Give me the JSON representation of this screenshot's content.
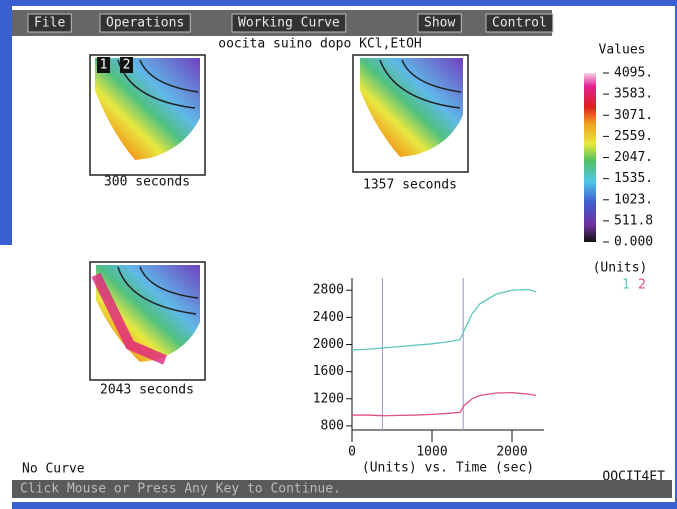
{
  "menu": [
    "File",
    "Operations",
    "Working Curve",
    "Show",
    "Control"
  ],
  "title": "oocita suino dopo KCl,EtOH",
  "images": [
    {
      "label": "300 seconds",
      "regions": [
        "1",
        "2"
      ]
    },
    {
      "label": "1357 seconds"
    },
    {
      "label": "2043 seconds"
    }
  ],
  "colorbar": {
    "title": "Values",
    "units": "(Units)",
    "ticks": [
      {
        "value": 4095,
        "label": "4095."
      },
      {
        "value": 3583,
        "label": "3583."
      },
      {
        "value": 3071,
        "label": "3071."
      },
      {
        "value": 2559,
        "label": "2559."
      },
      {
        "value": 2047,
        "label": "2047."
      },
      {
        "value": 1535,
        "label": "1535."
      },
      {
        "value": 1023,
        "label": "1023."
      },
      {
        "value": 511.8,
        "label": "511.8"
      },
      {
        "value": 0,
        "label": "0.000"
      }
    ],
    "lim": [
      0,
      4095
    ]
  },
  "chart_data": {
    "type": "line",
    "x_label": "(Units) vs. Time (sec)",
    "xlim": [
      0,
      2400
    ],
    "xticks": [
      0,
      1000,
      2000
    ],
    "ylim": [
      740,
      2980
    ],
    "yticks": [
      800,
      1200,
      1600,
      2000,
      2400,
      2800
    ],
    "markers": [
      380,
      1390
    ],
    "marker_color": "#9a8fd0",
    "x": [
      0,
      200,
      400,
      600,
      800,
      1000,
      1200,
      1350,
      1400,
      1500,
      1600,
      1800,
      2000,
      2200,
      2300
    ],
    "series": [
      {
        "name": "1",
        "color": "#5cc8c0",
        "values": [
          1920,
          1930,
          1950,
          1970,
          1990,
          2010,
          2040,
          2070,
          2200,
          2450,
          2600,
          2740,
          2800,
          2810,
          2780
        ]
      },
      {
        "name": "2",
        "color": "#e0507a",
        "values": [
          960,
          960,
          950,
          955,
          960,
          970,
          985,
          1000,
          1100,
          1200,
          1250,
          1285,
          1290,
          1270,
          1250
        ]
      }
    ]
  },
  "status": {
    "left": "No Curve",
    "right": "OOCIT4ET"
  },
  "prompt": "Click Mouse or Press Any Key to Continue."
}
